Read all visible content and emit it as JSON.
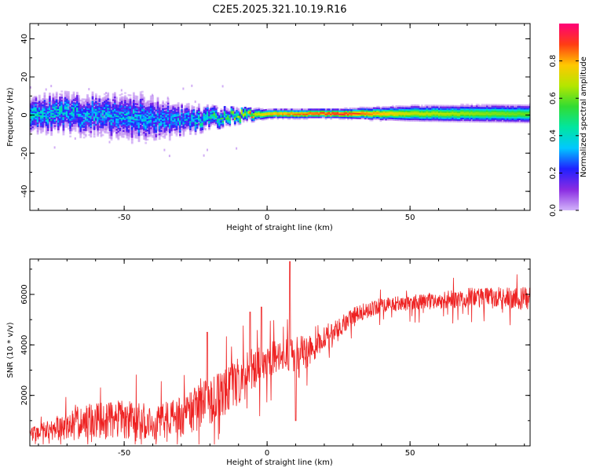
{
  "title": "C2E5.2025.321.10.19.R16",
  "chart_data": [
    {
      "type": "heatmap",
      "title": "C2E5.2025.321.10.19.R16",
      "xlabel": "Height of straight line (km)",
      "ylabel": "Frequency (Hz)",
      "xlim": [
        -83,
        92
      ],
      "ylim": [
        -50,
        48
      ],
      "xticks": [
        -50,
        0,
        50
      ],
      "yticks": [
        -40,
        -20,
        0,
        20,
        40
      ],
      "x_tick_labels": [
        "-50",
        "0",
        "50"
      ],
      "y_tick_labels": [
        "-40",
        "-20",
        "0",
        "20",
        "40"
      ],
      "colorbar": {
        "label": "Normalized spectral amplitude",
        "range": [
          0,
          1
        ],
        "ticks": [
          0.0,
          0.2,
          0.4,
          0.6,
          0.8
        ],
        "tick_labels": [
          "0.0",
          "0.2",
          "0.4",
          "0.6",
          "0.8"
        ],
        "colormap": [
          "#d2b4fa",
          "#8a2be2",
          "#2020ff",
          "#00c8ff",
          "#00e6a0",
          "#32dc32",
          "#b4e600",
          "#ffc800",
          "#ff3c14",
          "#ff0078"
        ]
      },
      "band": {
        "description_points": [
          {
            "x": -83,
            "center": 1,
            "halfwidth": 6,
            "amplitude": 0.35
          },
          {
            "x": -60,
            "center": 0,
            "halfwidth": 7,
            "amplitude": 0.3
          },
          {
            "x": -45,
            "center": -2,
            "halfwidth": 8,
            "amplitude": 0.3
          },
          {
            "x": -30,
            "center": -3,
            "halfwidth": 5,
            "amplitude": 0.3
          },
          {
            "x": -15,
            "center": -1,
            "halfwidth": 3,
            "amplitude": 0.45
          },
          {
            "x": 0,
            "center": 0.5,
            "halfwidth": 1.5,
            "amplitude": 0.8
          },
          {
            "x": 25,
            "center": 0.5,
            "halfwidth": 1.5,
            "amplitude": 0.95
          },
          {
            "x": 50,
            "center": 0.5,
            "halfwidth": 2.5,
            "amplitude": 0.7
          },
          {
            "x": 92,
            "center": 0.5,
            "halfwidth": 3,
            "amplitude": 0.6
          }
        ]
      }
    },
    {
      "type": "line",
      "xlabel": "Height of straight line (km)",
      "ylabel": "SNR (10 * v/v)",
      "xlim": [
        -83,
        92
      ],
      "ylim": [
        0,
        7400
      ],
      "xticks": [
        -50,
        0,
        50
      ],
      "yticks": [
        2000,
        4000,
        6000
      ],
      "x_tick_labels": [
        "-50",
        "0",
        "50"
      ],
      "y_tick_labels": [
        "2000",
        "4000",
        "6000"
      ],
      "series": [
        {
          "name": "SNR",
          "color": "#ee2222",
          "baseline_x": [
            -83,
            -75,
            -65,
            -50,
            -40,
            -30,
            -20,
            -10,
            -5,
            0,
            5,
            10,
            15,
            20,
            25,
            30,
            40,
            50,
            60,
            70,
            80,
            92
          ],
          "baseline_y": [
            500,
            700,
            1000,
            1100,
            1000,
            1200,
            1900,
            2600,
            3100,
            3400,
            3800,
            3500,
            3900,
            4300,
            4700,
            5200,
            5600,
            5700,
            5800,
            5900,
            5900,
            5900
          ],
          "noise_amplitude": [
            300,
            450,
            700,
            800,
            700,
            800,
            1000,
            1000,
            900,
            700,
            650,
            900,
            600,
            450,
            400,
            350,
            300,
            300,
            350,
            400,
            450,
            450
          ],
          "spikes": [
            {
              "x": 8,
              "y": 7300
            },
            {
              "x": 10,
              "y": 1000
            },
            {
              "x": -2,
              "y": 5500
            },
            {
              "x": -6,
              "y": 5300
            },
            {
              "x": -21,
              "y": 4500
            }
          ]
        }
      ]
    }
  ]
}
